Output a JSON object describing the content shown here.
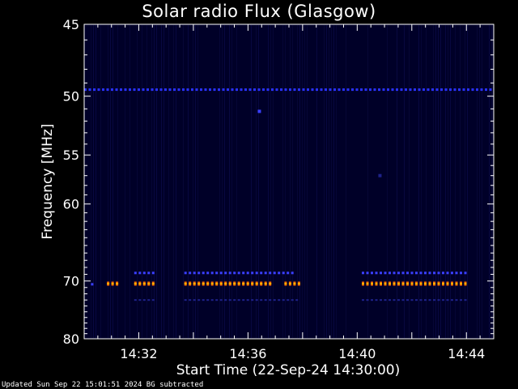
{
  "title": "Solar radio Flux (Glasgow)",
  "footer": "Updated Sun Sep 22 15:01:51 2024   BG subtracted",
  "chart_data": {
    "type": "heatmap",
    "title": "Solar radio Flux (Glasgow)",
    "xlabel": "Start Time (22-Sep-24 14:30:00)",
    "ylabel": "Frequency [MHz]",
    "xlim": [
      "14:30:00",
      "14:45:00"
    ],
    "ylim": [
      45,
      80
    ],
    "y_reversed": true,
    "x_ticks": [
      "14:32",
      "14:36",
      "14:40",
      "14:44"
    ],
    "y_ticks": [
      45,
      50,
      55,
      60,
      70,
      80
    ],
    "background": "#000028",
    "features": [
      {
        "kind": "band",
        "freq_mhz": 49.5,
        "start": "14:30:00",
        "end": "14:45:00",
        "color": "#2a32ff",
        "intensity": "medium"
      },
      {
        "kind": "band",
        "freq_mhz": 68.8,
        "start": "14:31:50",
        "end": "14:32:30",
        "color": "#3a40ff",
        "intensity": "medium"
      },
      {
        "kind": "band",
        "freq_mhz": 68.8,
        "start": "14:33:40",
        "end": "14:37:40",
        "color": "#3a40ff",
        "intensity": "medium"
      },
      {
        "kind": "band",
        "freq_mhz": 68.8,
        "start": "14:40:10",
        "end": "14:44:00",
        "color": "#3a40ff",
        "intensity": "medium"
      },
      {
        "kind": "band",
        "freq_mhz": 70.5,
        "start": "14:30:15",
        "end": "14:30:20",
        "color": "#3a40ff",
        "intensity": "medium"
      },
      {
        "kind": "band",
        "freq_mhz": 70.4,
        "start": "14:30:50",
        "end": "14:31:10",
        "color": "#ff6a00",
        "intensity": "high"
      },
      {
        "kind": "band",
        "freq_mhz": 70.4,
        "start": "14:31:50",
        "end": "14:32:30",
        "color": "#ff6a00",
        "intensity": "high"
      },
      {
        "kind": "band",
        "freq_mhz": 70.4,
        "start": "14:33:40",
        "end": "14:36:50",
        "color": "#ff6a00",
        "intensity": "high"
      },
      {
        "kind": "band",
        "freq_mhz": 70.4,
        "start": "14:37:20",
        "end": "14:37:50",
        "color": "#ff6a00",
        "intensity": "high"
      },
      {
        "kind": "band",
        "freq_mhz": 70.4,
        "start": "14:40:10",
        "end": "14:44:00",
        "color": "#ff6a00",
        "intensity": "high"
      },
      {
        "kind": "band",
        "freq_mhz": 73.0,
        "start": "14:31:50",
        "end": "14:32:30",
        "color": "#1e228a",
        "intensity": "low"
      },
      {
        "kind": "band",
        "freq_mhz": 73.0,
        "start": "14:33:40",
        "end": "14:37:50",
        "color": "#1e228a",
        "intensity": "low"
      },
      {
        "kind": "band",
        "freq_mhz": 73.0,
        "start": "14:40:10",
        "end": "14:44:00",
        "color": "#1e228a",
        "intensity": "low"
      },
      {
        "kind": "point",
        "freq_mhz": 51.2,
        "time": "14:36:25",
        "color": "#3a40ff"
      },
      {
        "kind": "point",
        "freq_mhz": 57.0,
        "time": "14:40:50",
        "color": "#1e228a"
      }
    ]
  }
}
